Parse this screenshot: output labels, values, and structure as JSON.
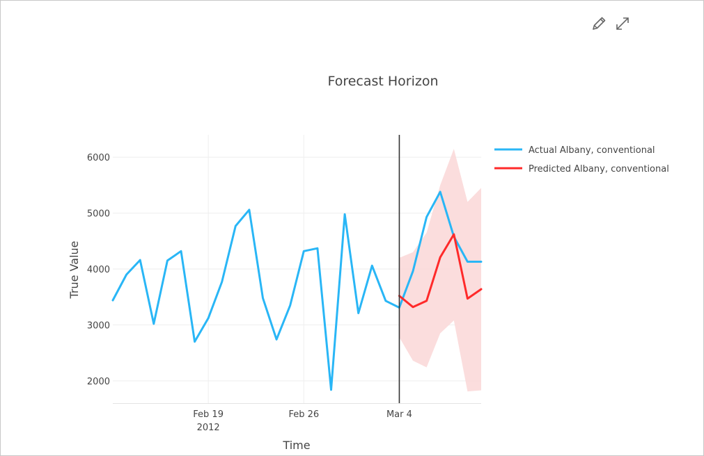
{
  "toolbar": {
    "edit_icon": "pencil-icon",
    "expand_icon": "expand-icon"
  },
  "chart_data": {
    "type": "line",
    "title": "Forecast Horizon",
    "xlabel": "Time",
    "ylabel": "True Value",
    "x_tick_labels": [
      {
        "date": "2012-02-19",
        "label": "Feb 19",
        "sublabel": "2012"
      },
      {
        "date": "2012-02-26",
        "label": "Feb 26",
        "sublabel": ""
      },
      {
        "date": "2012-03-04",
        "label": "Mar 4",
        "sublabel": ""
      }
    ],
    "y_ticks": [
      2000,
      3000,
      4000,
      5000,
      6000
    ],
    "xlim": [
      "2012-02-12",
      "2012-03-10"
    ],
    "ylim": [
      1600,
      6400
    ],
    "split_date": "2012-03-04",
    "grid": true,
    "legend_position": "top-right",
    "colors": {
      "actual": "#29b6f6",
      "predicted": "#ff2a2a",
      "interval": "#fbd9d9",
      "split_line": "#333333",
      "grid": "#eeeeee"
    },
    "series": [
      {
        "name": "Actual Albany, conventional",
        "x": [
          "2012-02-12",
          "2012-02-13",
          "2012-02-14",
          "2012-02-15",
          "2012-02-16",
          "2012-02-17",
          "2012-02-18",
          "2012-02-19",
          "2012-02-20",
          "2012-02-21",
          "2012-02-22",
          "2012-02-23",
          "2012-02-24",
          "2012-02-25",
          "2012-02-26",
          "2012-02-27",
          "2012-02-28",
          "2012-02-29",
          "2012-03-01",
          "2012-03-02",
          "2012-03-03",
          "2012-03-04",
          "2012-03-05",
          "2012-03-06",
          "2012-03-07",
          "2012-03-08",
          "2012-03-09",
          "2012-03-10"
        ],
        "values": [
          3440,
          3900,
          4160,
          3020,
          4150,
          4320,
          2700,
          3120,
          3770,
          4770,
          5060,
          3480,
          2740,
          3350,
          4320,
          4370,
          1840,
          4980,
          3210,
          4060,
          3430,
          3310,
          3960,
          4930,
          5380,
          4580,
          4130,
          4130
        ]
      },
      {
        "name": "Predicted Albany, conventional",
        "x": [
          "2012-03-04",
          "2012-03-05",
          "2012-03-06",
          "2012-03-07",
          "2012-03-08",
          "2012-03-09",
          "2012-03-10"
        ],
        "values": [
          3520,
          3320,
          3430,
          4210,
          4620,
          3470,
          3640
        ]
      }
    ],
    "prediction_interval": {
      "x": [
        "2012-03-04",
        "2012-03-05",
        "2012-03-06",
        "2012-03-07",
        "2012-03-08",
        "2012-03-09",
        "2012-03-10"
      ],
      "upper": [
        4200,
        4300,
        4650,
        5500,
        6150,
        5200,
        5450
      ],
      "lower": [
        2780,
        2360,
        2240,
        2850,
        3080,
        1810,
        1830
      ]
    }
  }
}
